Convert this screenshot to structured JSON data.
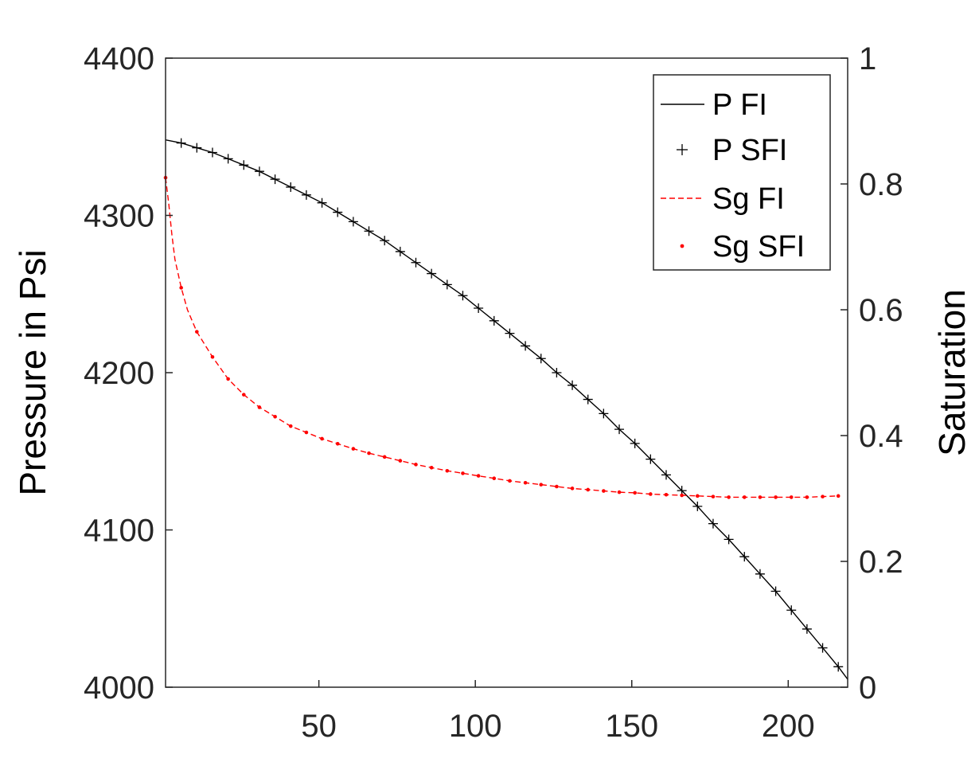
{
  "chart_data": {
    "type": "line",
    "title": "",
    "xlabel": "",
    "ylabel": "Pressure in Psi",
    "y2label": "Saturation",
    "xlim": [
      1,
      219
    ],
    "ylim": [
      4000,
      4400
    ],
    "y2lim": [
      0,
      1
    ],
    "x_ticks": [
      50,
      100,
      150,
      200
    ],
    "y_ticks": [
      4000,
      4100,
      4200,
      4300,
      4400
    ],
    "y2_ticks": [
      0,
      0.2,
      0.4,
      0.6,
      0.8,
      1
    ],
    "y2_tick_labels": [
      "0",
      "0.2",
      "0.4",
      "0.6",
      "0.8",
      "1"
    ],
    "grid": false,
    "legend": "top-right",
    "colors": {
      "pressure": "#000000",
      "saturation": "#ff0000"
    },
    "series": [
      {
        "name": "P FI",
        "axis": "left",
        "style": "solid-line",
        "x": [
          1,
          6,
          11,
          16,
          21,
          26,
          31,
          36,
          41,
          46,
          51,
          56,
          61,
          66,
          71,
          76,
          81,
          86,
          91,
          96,
          101,
          106,
          111,
          116,
          121,
          126,
          131,
          136,
          141,
          146,
          151,
          156,
          161,
          166,
          171,
          176,
          181,
          186,
          191,
          196,
          201,
          206,
          211,
          216,
          219
        ],
        "values": [
          4348,
          4346,
          4343,
          4340,
          4336,
          4332,
          4328,
          4323,
          4318,
          4313,
          4308,
          4302,
          4296,
          4290,
          4284,
          4277,
          4270,
          4263,
          4256,
          4249,
          4241,
          4233,
          4225,
          4217,
          4209,
          4200,
          4192,
          4183,
          4174,
          4164,
          4155,
          4145,
          4135,
          4125,
          4115,
          4104,
          4094,
          4083,
          4072,
          4061,
          4049,
          4037,
          4025,
          4013,
          4005
        ]
      },
      {
        "name": "P SFI",
        "axis": "left",
        "style": "plus-markers",
        "x": [
          6,
          11,
          16,
          21,
          26,
          31,
          36,
          41,
          46,
          51,
          56,
          61,
          66,
          71,
          76,
          81,
          86,
          91,
          96,
          101,
          106,
          111,
          116,
          121,
          126,
          131,
          136,
          141,
          146,
          151,
          156,
          161,
          166,
          171,
          176,
          181,
          186,
          191,
          196,
          201,
          206,
          211,
          216
        ],
        "values": [
          4346,
          4343,
          4340,
          4336,
          4332,
          4328,
          4323,
          4318,
          4313,
          4308,
          4302,
          4296,
          4290,
          4284,
          4277,
          4270,
          4263,
          4256,
          4249,
          4241,
          4233,
          4225,
          4217,
          4209,
          4200,
          4192,
          4183,
          4174,
          4164,
          4155,
          4145,
          4135,
          4125,
          4115,
          4104,
          4094,
          4083,
          4072,
          4061,
          4049,
          4037,
          4025,
          4013
        ]
      },
      {
        "name": "Sg FI",
        "axis": "right",
        "style": "dashed-line",
        "x": [
          1,
          2,
          3,
          4,
          6,
          8,
          11,
          16,
          21,
          26,
          31,
          36,
          41,
          46,
          51,
          56,
          61,
          66,
          71,
          76,
          81,
          86,
          91,
          96,
          101,
          106,
          111,
          116,
          121,
          126,
          131,
          136,
          141,
          146,
          151,
          156,
          161,
          166,
          171,
          176,
          181,
          186,
          191,
          196,
          201,
          206,
          211,
          216
        ],
        "values": [
          0.81,
          0.77,
          0.72,
          0.68,
          0.635,
          0.6,
          0.565,
          0.525,
          0.49,
          0.465,
          0.445,
          0.43,
          0.415,
          0.405,
          0.395,
          0.387,
          0.379,
          0.372,
          0.366,
          0.36,
          0.354,
          0.349,
          0.344,
          0.34,
          0.336,
          0.332,
          0.328,
          0.325,
          0.322,
          0.319,
          0.316,
          0.314,
          0.312,
          0.31,
          0.309,
          0.307,
          0.306,
          0.305,
          0.304,
          0.303,
          0.302,
          0.302,
          0.302,
          0.302,
          0.302,
          0.302,
          0.303,
          0.304
        ]
      },
      {
        "name": "Sg SFI",
        "axis": "right",
        "style": "dot-markers",
        "x": [
          1,
          6,
          11,
          16,
          21,
          26,
          31,
          36,
          41,
          46,
          51,
          56,
          61,
          66,
          71,
          76,
          81,
          86,
          91,
          96,
          101,
          106,
          111,
          116,
          121,
          126,
          131,
          136,
          141,
          146,
          151,
          156,
          161,
          166,
          171,
          176,
          181,
          186,
          191,
          196,
          201,
          206,
          211,
          216
        ],
        "values": [
          0.81,
          0.635,
          0.565,
          0.525,
          0.49,
          0.465,
          0.445,
          0.43,
          0.415,
          0.405,
          0.395,
          0.387,
          0.379,
          0.372,
          0.366,
          0.36,
          0.354,
          0.349,
          0.344,
          0.34,
          0.336,
          0.332,
          0.328,
          0.325,
          0.322,
          0.319,
          0.316,
          0.314,
          0.312,
          0.31,
          0.309,
          0.307,
          0.306,
          0.305,
          0.304,
          0.303,
          0.302,
          0.302,
          0.302,
          0.302,
          0.302,
          0.302,
          0.303,
          0.304
        ]
      }
    ]
  }
}
